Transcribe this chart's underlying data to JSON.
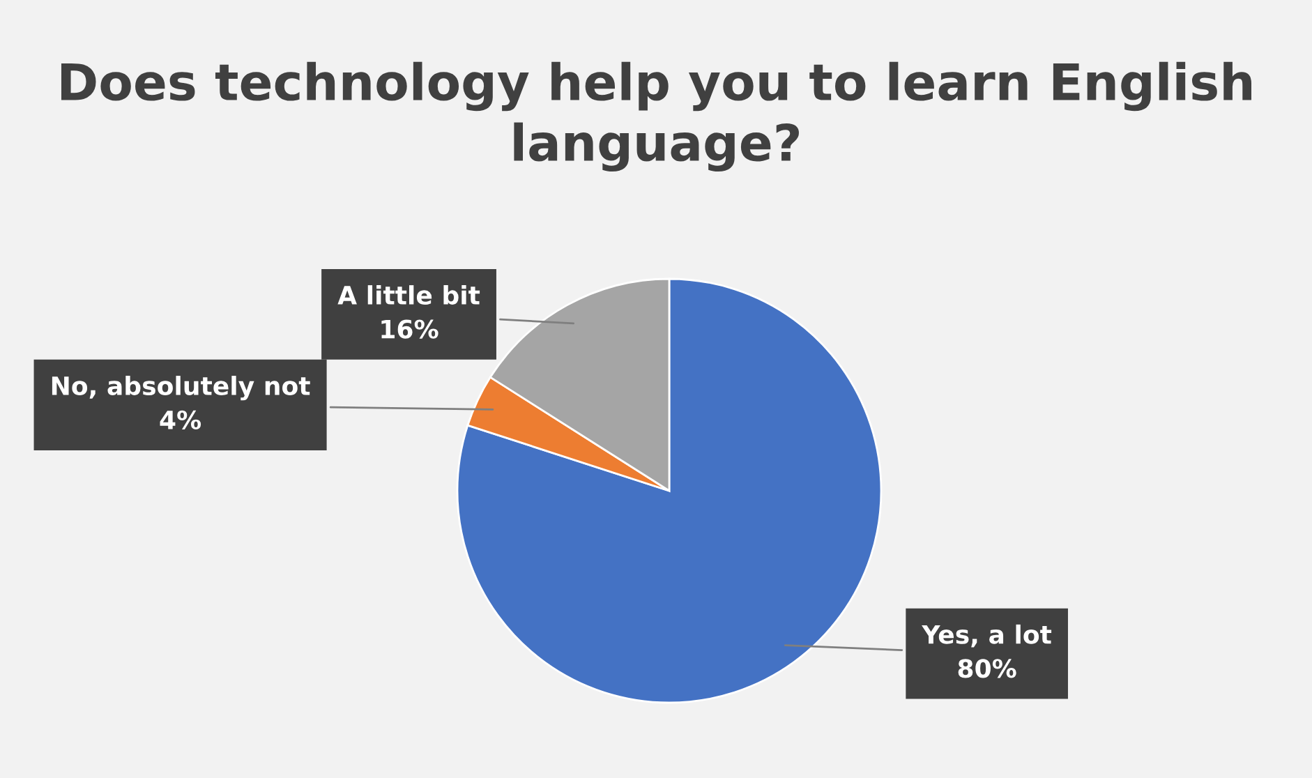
{
  "chart_data": {
    "type": "pie",
    "title": "Does technology help you to learn English language?",
    "categories": [
      "Yes, a lot",
      "No, absolutely not",
      "A little bit"
    ],
    "values": [
      80,
      4,
      16
    ],
    "value_labels": [
      "80%",
      "4%",
      "16%"
    ],
    "colors": [
      "#4472c4",
      "#ed7d31",
      "#a5a5a5"
    ]
  }
}
